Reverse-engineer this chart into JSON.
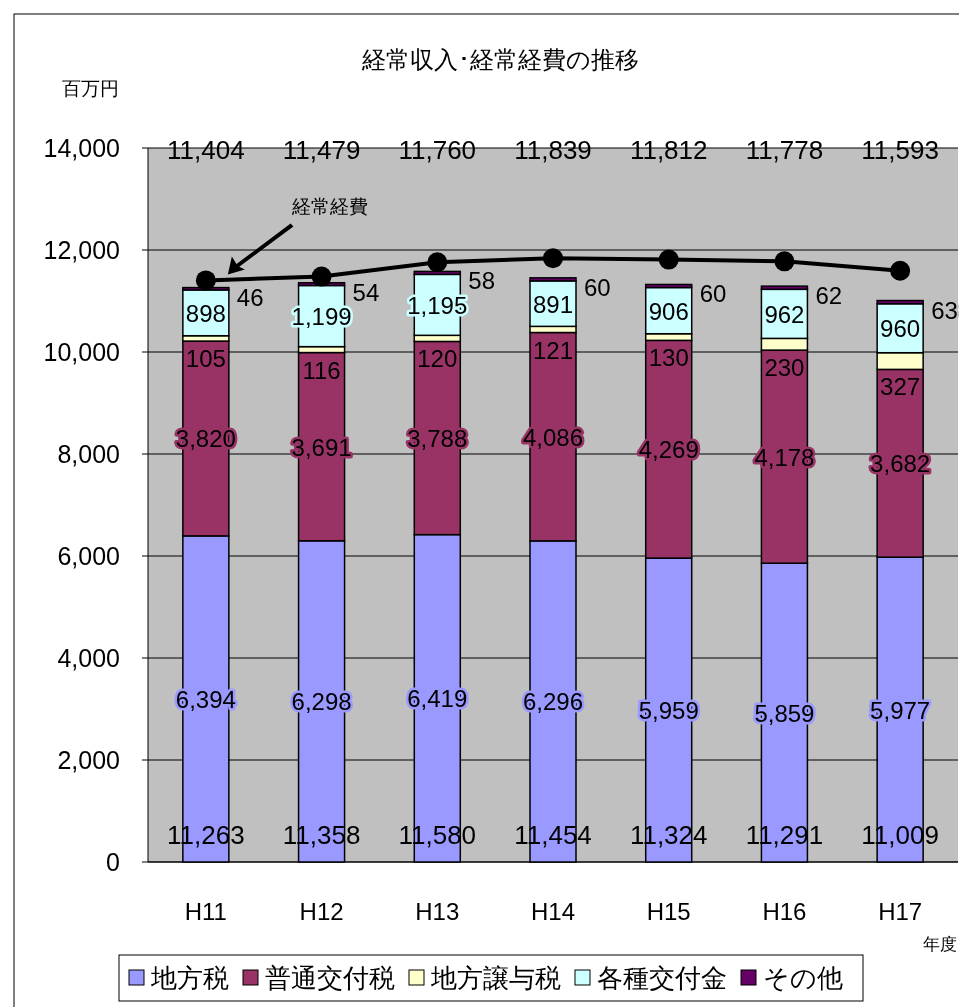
{
  "chart_data": {
    "type": "bar",
    "title": "経常収入･経常経費の推移",
    "ylabel": "百万円",
    "xlabel": "年度",
    "categories": [
      "H11",
      "H12",
      "H13",
      "H14",
      "H15",
      "H16",
      "H17"
    ],
    "stacked": true,
    "ylim": [
      0,
      14000
    ],
    "yticks": [
      0,
      {
        "value": 2000,
        "label": "2,000"
      },
      {
        "value": 4000,
        "label": "4,000"
      },
      {
        "value": 6000,
        "label": "6,000"
      },
      {
        "value": 8000,
        "label": "8,000"
      },
      {
        "value": 10000,
        "label": "10,000"
      },
      {
        "value": 12000,
        "label": "12,000"
      },
      {
        "value": 14000,
        "label": "14,000"
      }
    ],
    "grid": "y",
    "legend": "bottom",
    "series": [
      {
        "name": "地方税",
        "color": "#9999ff",
        "values": [
          6394,
          6298,
          6419,
          6296,
          5959,
          5859,
          5977
        ],
        "value_labels": [
          "6,394",
          "6,298",
          "6,419",
          "6,296",
          "5,959",
          "5,859",
          "5,977"
        ]
      },
      {
        "name": "普通交付税",
        "color": "#993366",
        "values": [
          3820,
          3691,
          3788,
          4086,
          4269,
          4178,
          3682
        ],
        "value_labels": [
          "3,820",
          "3,691",
          "3,788",
          "4,086",
          "4,269",
          "4,178",
          "3,682"
        ]
      },
      {
        "name": "地方譲与税",
        "color": "#ffffcc",
        "values": [
          105,
          116,
          120,
          121,
          130,
          230,
          327
        ],
        "value_labels": [
          "105",
          "116",
          "120",
          "121",
          "130",
          "230",
          "327"
        ]
      },
      {
        "name": "各種交付金",
        "color": "#ccffff",
        "values": [
          898,
          1199,
          1195,
          891,
          906,
          962,
          960
        ],
        "value_labels": [
          "898",
          "1,199",
          "1,195",
          "891",
          "906",
          "962",
          "960"
        ]
      },
      {
        "name": "その他",
        "color": "#660066",
        "values": [
          46,
          54,
          58,
          60,
          60,
          62,
          63
        ],
        "value_labels": [
          "46",
          "54",
          "58",
          "60",
          "60",
          "62",
          "63"
        ]
      },
      {
        "name": "経常経費",
        "type": "line",
        "color": "#000000",
        "marker": "circle",
        "values": [
          11404,
          11479,
          11760,
          11839,
          11812,
          11778,
          11593
        ]
      }
    ],
    "annotations": [
      "11,404",
      "11,479",
      "11,760",
      "11,839",
      "11,812",
      "11,778",
      "11,593"
    ],
    "totals": [
      "11,263",
      "11,358",
      "11,580",
      "11,454",
      "11,324",
      "11,291",
      "11,009"
    ]
  }
}
